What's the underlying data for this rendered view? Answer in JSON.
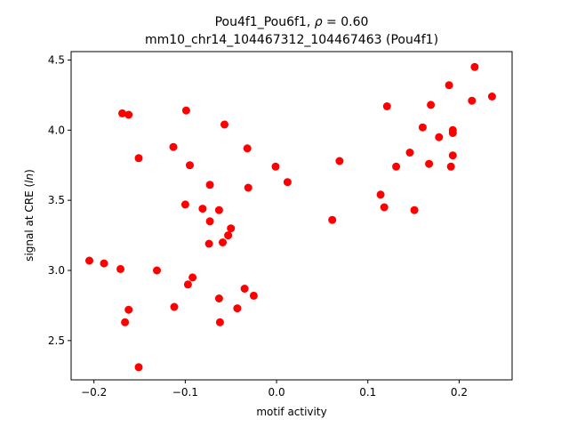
{
  "chart_data": {
    "type": "scatter",
    "title_line1_prefix": "Pou4f1_Pou6f1, ",
    "title_line1_rho_symbol": "ρ",
    "title_line1_rho_value": " = 0.60",
    "title_line2": "mm10_chr14_104467312_104467463 (Pou4f1)",
    "xlabel": "motif activity",
    "ylabel_prefix": "signal at CRE (",
    "ylabel_italic": "ln",
    "ylabel_suffix": ")",
    "xlim": [
      -0.225,
      0.258
    ],
    "ylim": [
      2.22,
      4.56
    ],
    "xticks": [
      -0.2,
      -0.1,
      0.0,
      0.1,
      0.2
    ],
    "xtick_labels": [
      "−0.2",
      "−0.1",
      "0.0",
      "0.1",
      "0.2"
    ],
    "yticks": [
      2.5,
      3.0,
      3.5,
      4.0,
      4.5
    ],
    "ytick_labels": [
      "2.5",
      "3.0",
      "3.5",
      "4.0",
      "4.5"
    ],
    "marker_color": "#ff0000",
    "points": [
      {
        "x": -0.205,
        "y": 3.07
      },
      {
        "x": -0.189,
        "y": 3.05
      },
      {
        "x": -0.171,
        "y": 3.01
      },
      {
        "x": -0.169,
        "y": 4.12
      },
      {
        "x": -0.162,
        "y": 4.11
      },
      {
        "x": -0.166,
        "y": 2.63
      },
      {
        "x": -0.162,
        "y": 2.72
      },
      {
        "x": -0.151,
        "y": 3.8
      },
      {
        "x": -0.151,
        "y": 2.31
      },
      {
        "x": -0.131,
        "y": 3.0
      },
      {
        "x": -0.113,
        "y": 3.88
      },
      {
        "x": -0.112,
        "y": 2.74
      },
      {
        "x": -0.1,
        "y": 3.47
      },
      {
        "x": -0.099,
        "y": 4.14
      },
      {
        "x": -0.097,
        "y": 2.9
      },
      {
        "x": -0.095,
        "y": 3.75
      },
      {
        "x": -0.092,
        "y": 2.95
      },
      {
        "x": -0.081,
        "y": 3.44
      },
      {
        "x": -0.073,
        "y": 3.61
      },
      {
        "x": -0.073,
        "y": 3.35
      },
      {
        "x": -0.074,
        "y": 3.19
      },
      {
        "x": -0.063,
        "y": 3.43
      },
      {
        "x": -0.063,
        "y": 2.8
      },
      {
        "x": -0.062,
        "y": 2.63
      },
      {
        "x": -0.059,
        "y": 3.2
      },
      {
        "x": -0.057,
        "y": 4.04
      },
      {
        "x": -0.053,
        "y": 3.25
      },
      {
        "x": -0.05,
        "y": 3.3
      },
      {
        "x": -0.043,
        "y": 2.73
      },
      {
        "x": -0.035,
        "y": 2.87
      },
      {
        "x": -0.032,
        "y": 3.87
      },
      {
        "x": -0.031,
        "y": 3.59
      },
      {
        "x": -0.025,
        "y": 2.82
      },
      {
        "x": -0.001,
        "y": 3.74
      },
      {
        "x": 0.012,
        "y": 3.63
      },
      {
        "x": 0.061,
        "y": 3.36
      },
      {
        "x": 0.069,
        "y": 3.78
      },
      {
        "x": 0.114,
        "y": 3.54
      },
      {
        "x": 0.118,
        "y": 3.45
      },
      {
        "x": 0.121,
        "y": 4.17
      },
      {
        "x": 0.131,
        "y": 3.74
      },
      {
        "x": 0.146,
        "y": 3.84
      },
      {
        "x": 0.151,
        "y": 3.43
      },
      {
        "x": 0.16,
        "y": 4.02
      },
      {
        "x": 0.167,
        "y": 3.76
      },
      {
        "x": 0.169,
        "y": 4.18
      },
      {
        "x": 0.178,
        "y": 3.95
      },
      {
        "x": 0.189,
        "y": 4.32
      },
      {
        "x": 0.191,
        "y": 3.74
      },
      {
        "x": 0.193,
        "y": 3.82
      },
      {
        "x": 0.193,
        "y": 4.0
      },
      {
        "x": 0.193,
        "y": 3.98
      },
      {
        "x": 0.214,
        "y": 4.21
      },
      {
        "x": 0.217,
        "y": 4.45
      },
      {
        "x": 0.236,
        "y": 4.24
      }
    ]
  }
}
